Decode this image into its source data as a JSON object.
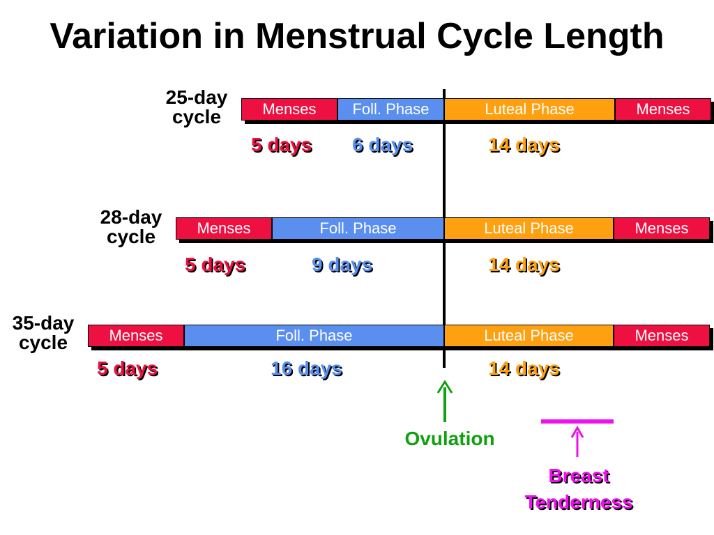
{
  "title": "Variation in Menstrual Cycle Length",
  "colors": {
    "menses": "#ee1040",
    "follicular": "#5a8ff0",
    "luteal": "#ffa010",
    "ovulation": "#10a010",
    "breast": "#ee10ee"
  },
  "cycles": [
    {
      "label_line1": "25-day",
      "label_line2": "cycle",
      "segments": {
        "menses1": "Menses",
        "foll": "Foll. Phase",
        "luteal": "Luteal Phase",
        "menses2": "Menses"
      },
      "lengths": {
        "menses": "5 days",
        "foll": "6 days",
        "luteal": "14 days"
      }
    },
    {
      "label_line1": "28-day",
      "label_line2": "cycle",
      "segments": {
        "menses1": "Menses",
        "foll": "Foll. Phase",
        "luteal": "Luteal Phase",
        "menses2": "Menses"
      },
      "lengths": {
        "menses": "5 days",
        "foll": "9 days",
        "luteal": "14 days"
      }
    },
    {
      "label_line1": "35-day",
      "label_line2": "cycle",
      "segments": {
        "menses1": "Menses",
        "foll": "Foll. Phase",
        "luteal": "Luteal Phase",
        "menses2": "Menses"
      },
      "lengths": {
        "menses": "5 days",
        "foll": "16 days",
        "luteal": "14 days"
      }
    }
  ],
  "ovulation_label": "Ovulation",
  "breast_label_line1": "Breast",
  "breast_label_line2": "Tenderness"
}
